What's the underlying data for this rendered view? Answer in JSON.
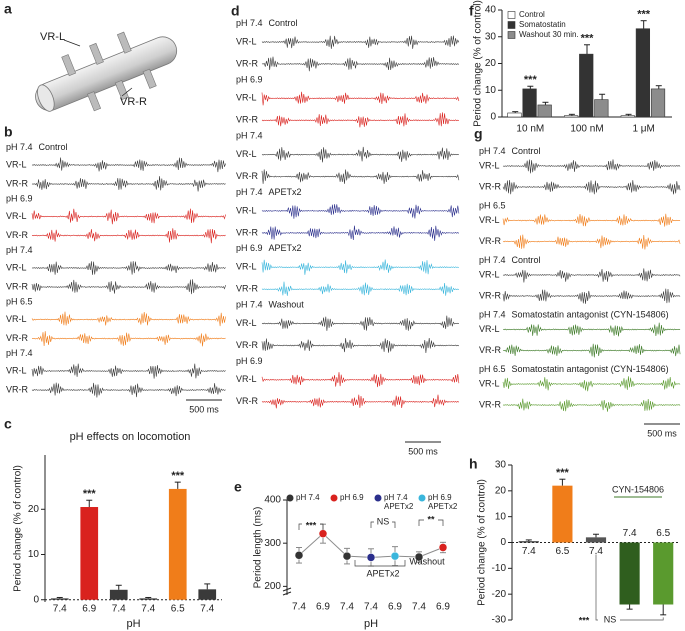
{
  "panel_a": {
    "letter": "a",
    "labels": [
      "VR-L",
      "VR-R"
    ]
  },
  "traces": [
    {
      "letter": "b",
      "scale": "500 ms",
      "groups": [
        {
          "condition": "pH 7.4",
          "note": "Control",
          "color": "#3a3a3a",
          "channels": [
            "VR-L",
            "VR-R"
          ]
        },
        {
          "condition": "pH 6.9",
          "color": "#d9221e",
          "channels": [
            "VR-L",
            "VR-R"
          ]
        },
        {
          "condition": "pH 7.4",
          "color": "#3a3a3a",
          "channels": [
            "VR-L",
            "VR-R"
          ]
        },
        {
          "condition": "pH 6.5",
          "color": "#f07d1a",
          "channels": [
            "VR-L",
            "VR-R"
          ]
        },
        {
          "condition": "pH 7.4",
          "color": "#3a3a3a",
          "channels": [
            "VR-L",
            "VR-R"
          ]
        }
      ]
    },
    {
      "letter": "d",
      "scale": "500 ms",
      "groups": [
        {
          "condition": "pH 7.4",
          "note": "Control",
          "color": "#3a3a3a",
          "channels": [
            "VR-L",
            "VR-R"
          ]
        },
        {
          "condition": "pH 6.9",
          "color": "#d9221e",
          "channels": [
            "VR-L",
            "VR-R"
          ]
        },
        {
          "condition": "pH 7.4",
          "color": "#3a3a3a",
          "channels": [
            "VR-L",
            "VR-R"
          ]
        },
        {
          "condition": "pH 7.4",
          "note": "APETx2",
          "color": "#2b2f8c",
          "channels": [
            "VR-L",
            "VR-R"
          ]
        },
        {
          "condition": "pH 6.9",
          "note": "APETx2",
          "color": "#3ab6dc",
          "channels": [
            "VR-L",
            "VR-R"
          ]
        },
        {
          "condition": "pH 7.4",
          "note": "Washout",
          "color": "#3a3a3a",
          "channels": [
            "VR-L",
            "VR-R"
          ]
        },
        {
          "condition": "pH 6.9",
          "color": "#d9221e",
          "channels": [
            "VR-L",
            "VR-R"
          ]
        }
      ]
    },
    {
      "letter": "g",
      "scale": "500 ms",
      "groups": [
        {
          "condition": "pH 7.4",
          "note": "Control",
          "color": "#3a3a3a",
          "channels": [
            "VR-L",
            "VR-R"
          ]
        },
        {
          "condition": "pH 6.5",
          "color": "#f07d1a",
          "channels": [
            "VR-L",
            "VR-R"
          ]
        },
        {
          "condition": "pH 7.4",
          "note": "Control",
          "color": "#3a3a3a",
          "channels": [
            "VR-L",
            "VR-R"
          ]
        },
        {
          "condition": "pH 7.4",
          "note": "Somatostatin antagonist (CYN-154806)",
          "color": "#3d7a27",
          "channels": [
            "VR-L",
            "VR-R"
          ]
        },
        {
          "condition": "pH 6.5",
          "note": "Somatostatin antagonist (CYN-154806)",
          "color": "#5a9a2e",
          "channels": [
            "VR-L",
            "VR-R"
          ]
        }
      ]
    }
  ],
  "chart_data": [
    {
      "type": "bar",
      "letter": "c",
      "title": "pH effects on locomotion",
      "y_label": "Period change (% of control)",
      "x_label": "pH",
      "categories": [
        "7.4",
        "6.9",
        "7.4",
        "7.4",
        "6.5",
        "7.4"
      ],
      "values": [
        0.3,
        20.5,
        2.2,
        0.3,
        24.5,
        2.3
      ],
      "errors": [
        0.2,
        1.5,
        1,
        0.2,
        1.5,
        1.2
      ],
      "colors": [
        "#3a3a3a",
        "#d9221e",
        "#3a3a3a",
        "#3a3a3a",
        "#f07d1a",
        "#3a3a3a"
      ],
      "significance": [
        null,
        "***",
        null,
        null,
        "***",
        null
      ],
      "ylim": [
        -0.5,
        32
      ],
      "yticks": [
        0,
        10,
        20
      ],
      "baseline": "dotted"
    },
    {
      "type": "line",
      "letter": "e",
      "y_label": "Period length (ms)",
      "x_label": "pH",
      "categories": [
        "7.4",
        "6.9",
        "7.4",
        "7.4",
        "6.9",
        "7.4",
        "6.9"
      ],
      "series": [
        {
          "color": "#8c8c8c",
          "values": [
            272,
            322,
            270,
            267,
            270,
            268,
            290
          ],
          "errors": [
            18,
            22,
            18,
            20,
            22,
            12,
            12
          ],
          "point_colors": [
            "#333333",
            "#d9221e",
            "#333333",
            "#2b2f8c",
            "#3ab6dc",
            "#333333",
            "#d9221e"
          ]
        }
      ],
      "legend": [
        {
          "name": [
            "pH 7.4"
          ],
          "color": "#333333"
        },
        {
          "name": [
            "pH 6.9"
          ],
          "color": "#d9221e"
        },
        {
          "name": [
            "pH 7.4",
            "APETx2"
          ],
          "color": "#2b2f8c"
        },
        {
          "name": [
            "pH 6.9",
            "APETx2"
          ],
          "color": "#3ab6dc"
        }
      ],
      "annotations": [
        "***",
        "NS",
        "**",
        "APETx2",
        "Washout"
      ],
      "ylim": [
        180,
        400
      ],
      "yticks": [
        200,
        300,
        400
      ],
      "axis_break": true
    },
    {
      "type": "bar",
      "letter": "f",
      "y_label": "Period change (% of control)",
      "categories": [
        "10 nM",
        "100 nM",
        "1 μM"
      ],
      "series": [
        {
          "name": "Control",
          "color": "#ffffff",
          "values": [
            1.5,
            0.5,
            0.5
          ],
          "errors": [
            0.5,
            0.5,
            0.5
          ]
        },
        {
          "name": "Somatostatin",
          "color": "#333333",
          "values": [
            10.5,
            23.5,
            33
          ],
          "errors": [
            1,
            3.5,
            3
          ],
          "significance": [
            "***",
            "***",
            "***"
          ]
        },
        {
          "name": "Washout 30 min.",
          "color": "#8c8c8c",
          "values": [
            4.5,
            6.5,
            10.5
          ],
          "errors": [
            1,
            2,
            1.2
          ]
        }
      ],
      "ylim": [
        0,
        40
      ],
      "yticks": [
        0,
        10,
        20,
        30,
        40
      ],
      "legend": "top-left"
    },
    {
      "type": "bar",
      "letter": "h",
      "y_label": "Period change (% of control)",
      "categories": [
        "7.4",
        "6.5",
        "7.4",
        "7.4",
        "6.5"
      ],
      "values": [
        0.5,
        22,
        2,
        -24,
        -24
      ],
      "errors": [
        0.5,
        2.5,
        1.2,
        1.8,
        4
      ],
      "colors": [
        "#3a3a3a",
        "#f07d1a",
        "#555555",
        "#2f5e1e",
        "#5a9a2e"
      ],
      "significance": [
        null,
        "***",
        null,
        null,
        null
      ],
      "annotations": [
        "CYN-154806",
        "***",
        "NS"
      ],
      "ylim": [
        -30,
        30
      ],
      "yticks": [
        -30,
        -20,
        -10,
        0,
        10,
        20,
        30
      ],
      "baseline": "dotted"
    }
  ]
}
